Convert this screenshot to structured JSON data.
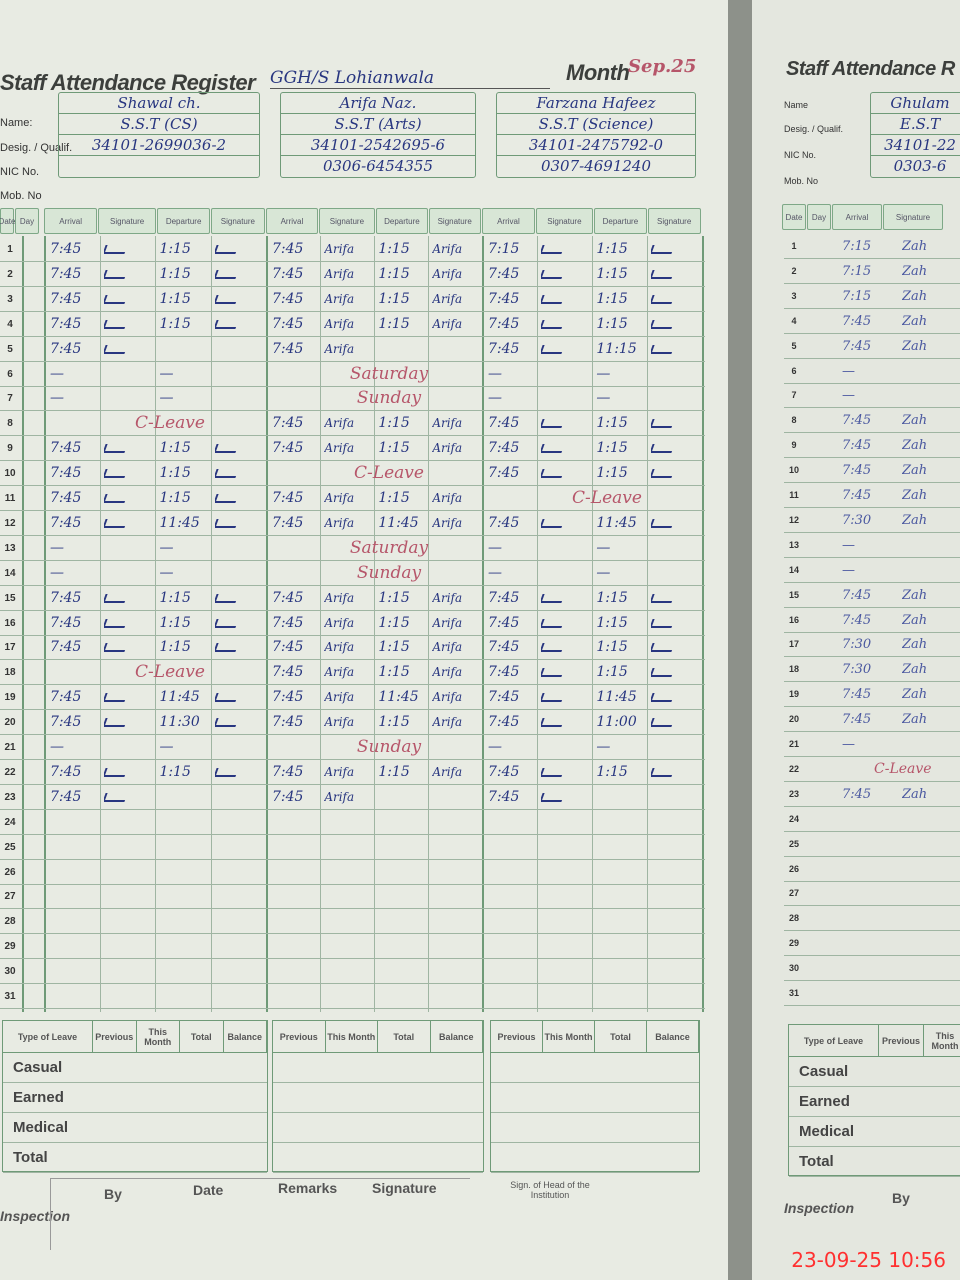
{
  "register_title": "Staff Attendance Register",
  "school": "GGH/S Lohianwala",
  "month_label": "Month",
  "month_value": "Sep.25",
  "labels": {
    "name": "Name:",
    "designation": "Desig. / Qualif.",
    "cnic": "NIC No.",
    "mobile": "Mob. No"
  },
  "column_headers": {
    "date": "Date",
    "day": "Day",
    "arrival": "Arrival",
    "signature": "Signature",
    "departure": "Departure"
  },
  "staff": [
    {
      "name": "Shawal ch.",
      "designation": "S.S.T (CS)",
      "cnic": "34101-2699036-2",
      "mobile": "",
      "signature_text": "",
      "days": [
        [
          "7:45",
          "1:15"
        ],
        [
          "7:45",
          "1:15"
        ],
        [
          "7:45",
          "1:15"
        ],
        [
          "7:45",
          "1:15"
        ],
        [
          "7:45",
          ""
        ],
        [
          "—",
          "—"
        ],
        [
          "—",
          "—"
        ],
        {
          "note": "C-Leave"
        },
        [
          "7:45",
          "1:15"
        ],
        [
          "7:45",
          "1:15"
        ],
        [
          "7:45",
          "1:15"
        ],
        [
          "7:45",
          "11:45"
        ],
        [
          "—",
          "—"
        ],
        [
          "—",
          "—"
        ],
        [
          "7:45",
          "1:15"
        ],
        [
          "7:45",
          "1:15"
        ],
        [
          "7:45",
          "1:15"
        ],
        {
          "note": "C-Leave"
        },
        [
          "7:45",
          "11:45"
        ],
        [
          "7:45",
          "11:30"
        ],
        [
          "—",
          "—"
        ],
        [
          "7:45",
          "1:15"
        ],
        [
          "7:45",
          ""
        ]
      ]
    },
    {
      "name": "Arifa Naz.",
      "designation": "S.S.T (Arts)",
      "cnic": "34101-2542695-6",
      "mobile": "0306-6454355",
      "signature_text": "Arifa",
      "days": [
        [
          "7:45",
          "1:15"
        ],
        [
          "7:45",
          "1:15"
        ],
        [
          "7:45",
          "1:15"
        ],
        [
          "7:45",
          "1:15"
        ],
        [
          "7:45",
          ""
        ],
        {
          "note": "Saturday"
        },
        {
          "note": "Sunday"
        },
        [
          "7:45",
          "1:15"
        ],
        [
          "7:45",
          "1:15"
        ],
        {
          "note": "C-Leave"
        },
        [
          "7:45",
          "1:15"
        ],
        [
          "7:45",
          "11:45"
        ],
        {
          "note": "Saturday"
        },
        {
          "note": "Sunday"
        },
        [
          "7:45",
          "1:15"
        ],
        [
          "7:45",
          "1:15"
        ],
        [
          "7:45",
          "1:15"
        ],
        [
          "7:45",
          "1:15"
        ],
        [
          "7:45",
          "11:45"
        ],
        [
          "7:45",
          "1:15"
        ],
        {
          "note": "Sunday"
        },
        [
          "7:45",
          "1:15"
        ],
        [
          "7:45",
          ""
        ]
      ]
    },
    {
      "name": "Farzana Hafeez",
      "designation": "S.S.T (Science)",
      "cnic": "34101-2475792-0",
      "mobile": "0307-4691240",
      "signature_text": "",
      "days": [
        [
          "7:15",
          "1:15"
        ],
        [
          "7:45",
          "1:15"
        ],
        [
          "7:45",
          "1:15"
        ],
        [
          "7:45",
          "1:15"
        ],
        [
          "7:45",
          "11:15"
        ],
        [
          "—",
          "—"
        ],
        [
          "—",
          "—"
        ],
        [
          "7:45",
          "1:15"
        ],
        [
          "7:45",
          "1:15"
        ],
        [
          "7:45",
          "1:15"
        ],
        {
          "note": "C-Leave"
        },
        [
          "7:45",
          "11:45"
        ],
        [
          "—",
          "—"
        ],
        [
          "—",
          "—"
        ],
        [
          "7:45",
          "1:15"
        ],
        [
          "7:45",
          "1:15"
        ],
        [
          "7:45",
          "1:15"
        ],
        [
          "7:45",
          "1:15"
        ],
        [
          "7:45",
          "11:45"
        ],
        [
          "7:45",
          "11:00"
        ],
        [
          "—",
          "—"
        ],
        [
          "7:45",
          "1:15"
        ],
        [
          "7:45",
          ""
        ]
      ]
    }
  ],
  "right_page": {
    "register_title": "Staff Attendance R",
    "labels": {
      "name": "Name",
      "designation": "Desig. / Qualif.",
      "cnic": "NIC No.",
      "mobile": "Mob. No"
    },
    "name": "Ghulam",
    "designation": "E.S.T",
    "cnic": "34101-22",
    "mobile": "0303-6",
    "signature_text": "Zah",
    "arrivals": [
      "7:15",
      "7:15",
      "7:15",
      "7:45",
      "7:45",
      "—",
      "—",
      "7:45",
      "7:45",
      "7:45",
      "7:45",
      "7:30",
      "—",
      "—",
      "7:45",
      "7:45",
      "7:30",
      "7:30",
      "7:45",
      "7:45",
      "—",
      "C-Leave",
      "7:45"
    ],
    "leave_types": [
      "Casual",
      "Earned",
      "Medical",
      "Total"
    ],
    "leave_headers": [
      "Type of Leave",
      "Previous",
      "This Month"
    ],
    "inspection": "Inspection",
    "by": "By"
  },
  "leave_table": {
    "type_header": "Type of Leave",
    "headers": [
      "Previous",
      "This Month",
      "Total",
      "Balance"
    ],
    "types": [
      "Casual",
      "Earned",
      "Medical",
      "Total"
    ]
  },
  "inspection": {
    "label": "Inspection",
    "headers": [
      "By",
      "Date",
      "Remarks",
      "Signature"
    ],
    "head_sign": "Sign. of Head of the Institution"
  },
  "timestamp": "23-09-25  10:56"
}
